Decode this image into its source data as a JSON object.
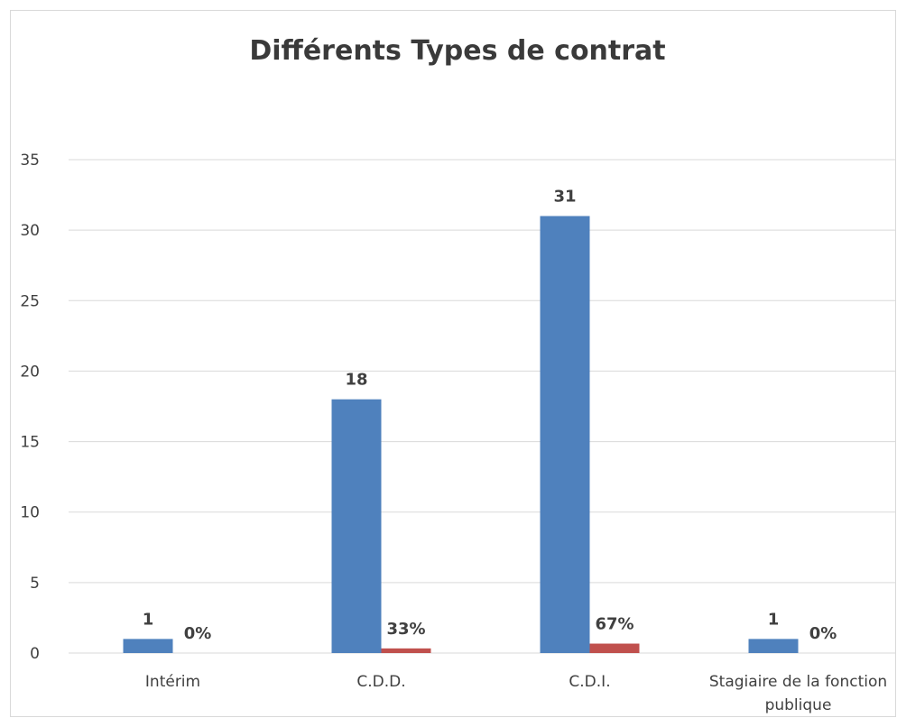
{
  "chart_data": {
    "type": "bar",
    "title": "Différents Types de contrat",
    "categories": [
      "Intérim",
      "C.D.D.",
      "C.D.I.",
      "Stagiaire de la fonction publique"
    ],
    "category_lines": [
      [
        "Intérim"
      ],
      [
        "C.D.D."
      ],
      [
        "C.D.I."
      ],
      [
        "Stagiaire de la fonction",
        "publique"
      ]
    ],
    "series": [
      {
        "values": [
          1,
          18,
          31,
          1
        ],
        "labels": [
          "1",
          "18",
          "31",
          "1"
        ],
        "color": "#4f81bd"
      },
      {
        "values": [
          0.0,
          0.33,
          0.67,
          0.0
        ],
        "labels": [
          "0%",
          "33%",
          "67%",
          "0%"
        ],
        "color": "#c0504d"
      }
    ],
    "yticks": [
      0,
      5,
      10,
      15,
      20,
      25,
      30,
      35
    ],
    "ylim": [
      0,
      35
    ],
    "xlabel": "",
    "ylabel": "",
    "grid": true,
    "legend": "none"
  }
}
